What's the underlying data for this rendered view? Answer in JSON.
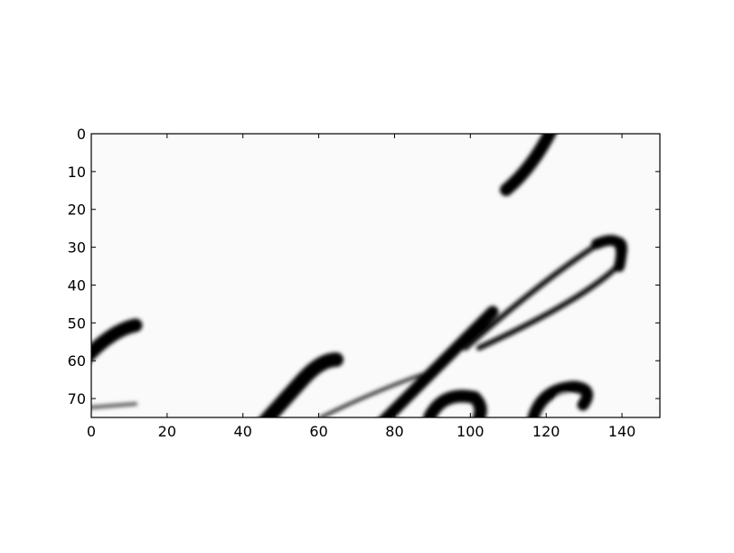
{
  "chart_data": {
    "type": "heatmap",
    "title": "",
    "xlabel": "",
    "ylabel": "",
    "colormap": "grayscale",
    "image_width": 150,
    "image_height": 75,
    "xlim": [
      0,
      150
    ],
    "ylim": [
      75,
      0
    ],
    "y_inverted": true,
    "grid": false,
    "xticks": [
      0,
      20,
      40,
      60,
      80,
      100,
      120,
      140
    ],
    "yticks": [
      0,
      10,
      20,
      30,
      40,
      50,
      60,
      70
    ],
    "xtick_labels": [
      "0",
      "20",
      "40",
      "60",
      "80",
      "100",
      "120",
      "140"
    ],
    "ytick_labels": [
      "0",
      "10",
      "20",
      "30",
      "40",
      "50",
      "60",
      "70"
    ],
    "background_color": "#fafafa",
    "ink_color": "#000000",
    "content": "handwritten script strokes (dark ink on light background)"
  }
}
